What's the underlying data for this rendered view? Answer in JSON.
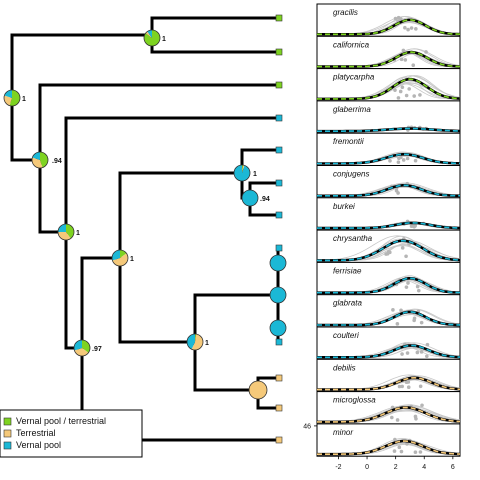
{
  "colors": {
    "vernal_terrestrial": "#7ED321",
    "terrestrial": "#F5C97A",
    "vernal": "#1BB8D6",
    "branch": "#000000"
  },
  "legend": [
    {
      "label": "Vernal pool / terrestrial",
      "color": "#7ED321"
    },
    {
      "label": "Terrestrial",
      "color": "#F5C97A"
    },
    {
      "label": "Vernal pool",
      "color": "#1BB8D6"
    }
  ],
  "species": [
    {
      "name": "gracilis",
      "state": "vernal_terrestrial"
    },
    {
      "name": "californica",
      "state": "vernal_terrestrial"
    },
    {
      "name": "platycarpha",
      "state": "vernal_terrestrial"
    },
    {
      "name": "glaberrima",
      "state": "vernal"
    },
    {
      "name": "fremontii",
      "state": "vernal"
    },
    {
      "name": "conjugens",
      "state": "vernal"
    },
    {
      "name": "burkei",
      "state": "vernal"
    },
    {
      "name": "chrysantha",
      "state": "vernal"
    },
    {
      "name": "ferrisiae",
      "state": "vernal"
    },
    {
      "name": "glabrata",
      "state": "vernal"
    },
    {
      "name": "coulteri",
      "state": "vernal"
    },
    {
      "name": "debilis",
      "state": "terrestrial"
    },
    {
      "name": "microglossa",
      "state": "terrestrial"
    },
    {
      "name": "minor",
      "state": "terrestrial"
    }
  ],
  "node_support": [
    {
      "id": "n1",
      "label": "1"
    },
    {
      "id": "n2",
      "label": "1"
    },
    {
      "id": "n3",
      "label": ".94"
    },
    {
      "id": "n4",
      "label": "1"
    },
    {
      "id": "n5",
      "label": ".97"
    },
    {
      "id": "n6",
      "label": "1"
    },
    {
      "id": "n7",
      "label": "1"
    },
    {
      "id": "n8",
      "label": ".94"
    },
    {
      "id": "n9",
      "label": "1"
    },
    {
      "id": "n10",
      "label": ""
    }
  ],
  "axis": {
    "x_ticks": [
      "-2",
      "0",
      "2",
      "4",
      "6"
    ],
    "y_tick": "46"
  }
}
